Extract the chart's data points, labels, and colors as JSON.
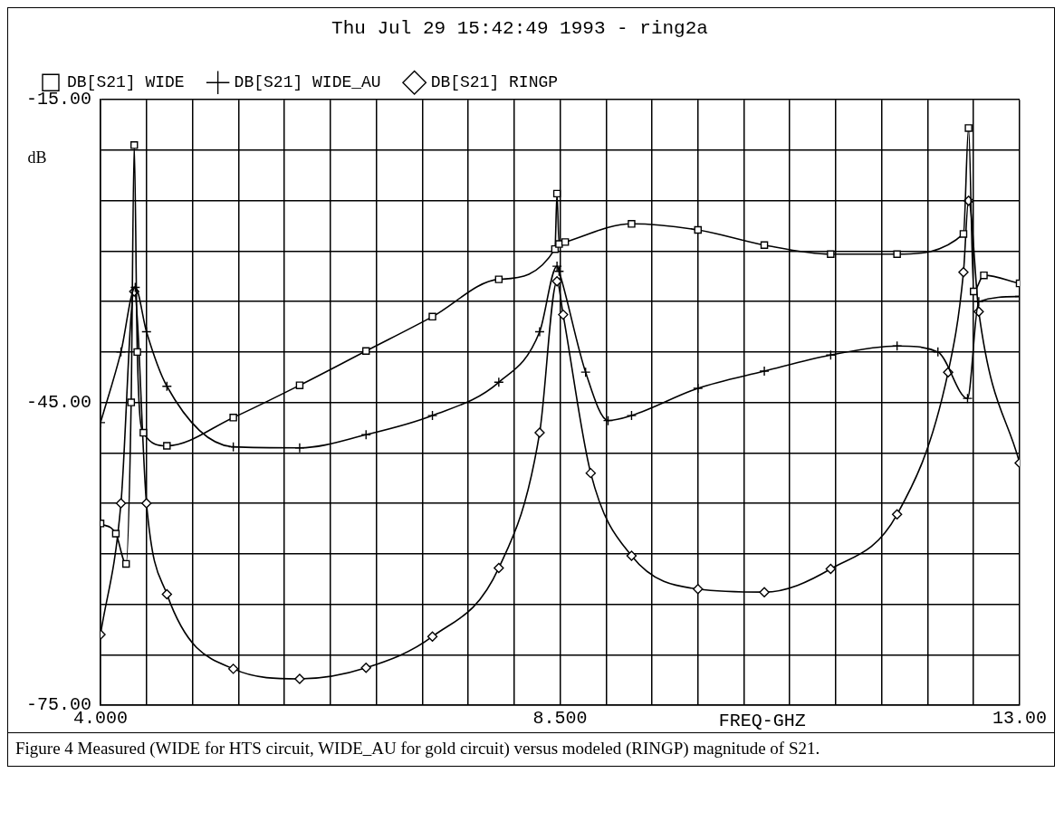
{
  "chart_data": {
    "type": "line",
    "title": "Thu Jul 29 15:42:49 1993 - ring2a",
    "xlabel": "FREQ-GHZ",
    "ylabel": "dB",
    "xlim": [
      4,
      13
    ],
    "ylim": [
      -75,
      -15
    ],
    "xticks": [
      {
        "value": 4,
        "label": "4.000"
      },
      {
        "value": 4.45,
        "label": null
      },
      {
        "value": 4.9,
        "label": null
      },
      {
        "value": 5.35,
        "label": null
      },
      {
        "value": 5.8,
        "label": null
      },
      {
        "value": 6.25,
        "label": null
      },
      {
        "value": 6.7,
        "label": null
      },
      {
        "value": 7.15,
        "label": null
      },
      {
        "value": 7.6,
        "label": null
      },
      {
        "value": 8.05,
        "label": null
      },
      {
        "value": 8.5,
        "label": "8.500"
      },
      {
        "value": 8.95,
        "label": null
      },
      {
        "value": 9.4,
        "label": null
      },
      {
        "value": 9.85,
        "label": null
      },
      {
        "value": 10.3,
        "label": null
      },
      {
        "value": 10.75,
        "label": null
      },
      {
        "value": 11.2,
        "label": null
      },
      {
        "value": 11.65,
        "label": null
      },
      {
        "value": 12.1,
        "label": null
      },
      {
        "value": 12.55,
        "label": null
      },
      {
        "value": 13,
        "label": "13.00"
      }
    ],
    "yticks": [
      {
        "value": -15,
        "label": "-15.00"
      },
      {
        "value": -20,
        "label": null
      },
      {
        "value": -25,
        "label": null
      },
      {
        "value": -30,
        "label": null
      },
      {
        "value": -35,
        "label": null
      },
      {
        "value": -40,
        "label": null
      },
      {
        "value": -45,
        "label": "-45.00"
      },
      {
        "value": -50,
        "label": null
      },
      {
        "value": -55,
        "label": null
      },
      {
        "value": -60,
        "label": null
      },
      {
        "value": -65,
        "label": null
      },
      {
        "value": -70,
        "label": null
      },
      {
        "value": -75,
        "label": "-75.00"
      }
    ],
    "grid": true,
    "legend": "top left",
    "series": [
      {
        "name": "DB[S21] WIDE",
        "color": "#000000",
        "marker": "square",
        "x": [
          4.0,
          4.15,
          4.25,
          4.3,
          4.33,
          4.36,
          4.42,
          4.65,
          5.3,
          5.95,
          6.6,
          7.25,
          7.9,
          8.45,
          8.47,
          8.49,
          8.55,
          9.2,
          9.85,
          10.5,
          11.15,
          11.8,
          12.45,
          12.5,
          12.55,
          12.65,
          13.0
        ],
        "values": [
          -57,
          -58,
          -61,
          -45,
          -19.5,
          -40,
          -48,
          -49.3,
          -46.5,
          -43.3,
          -39.9,
          -36.5,
          -32.8,
          -29.8,
          -24.3,
          -29.3,
          -29.1,
          -27.3,
          -27.9,
          -29.4,
          -30.3,
          -30.3,
          -28.3,
          -17.8,
          -34,
          -32.4,
          -33.2
        ]
      },
      {
        "name": "DB[S21] WIDE_AU",
        "color": "#000000",
        "marker": "cross",
        "x": [
          4.0,
          4.2,
          4.34,
          4.45,
          4.65,
          5.3,
          5.95,
          6.6,
          7.25,
          7.9,
          8.3,
          8.47,
          8.49,
          8.75,
          8.97,
          9.2,
          9.85,
          10.5,
          11.15,
          11.8,
          12.2,
          12.49,
          12.6,
          13.0
        ],
        "values": [
          -47,
          -40,
          -33.6,
          -38,
          -43.4,
          -49.4,
          -49.5,
          -48.2,
          -46.3,
          -43,
          -38,
          -31.5,
          -32,
          -42,
          -46.8,
          -46.3,
          -43.6,
          -41.9,
          -40.3,
          -39.4,
          -40,
          -44.6,
          -35,
          -34.5
        ]
      },
      {
        "name": "DB[S21] RINGP",
        "color": "#000000",
        "marker": "diamond",
        "x": [
          4.0,
          4.2,
          4.33,
          4.45,
          4.65,
          5.3,
          5.95,
          6.6,
          7.25,
          7.9,
          8.3,
          8.47,
          8.53,
          8.8,
          9.2,
          9.85,
          10.5,
          11.15,
          11.8,
          12.3,
          12.45,
          12.5,
          12.6,
          13.0
        ],
        "values": [
          -68,
          -55,
          -34,
          -55,
          -64,
          -71.4,
          -72.4,
          -71.3,
          -68.2,
          -61.4,
          -48,
          -33,
          -36.3,
          -52,
          -60.2,
          -63.5,
          -63.8,
          -61.5,
          -56.1,
          -42,
          -32.1,
          -25,
          -36,
          -51
        ]
      }
    ],
    "annotations": [
      "Figure 4  Measured (WIDE for HTS circuit, WIDE_AU for gold circuit) versus modeled (RINGP) magnitude of S21."
    ]
  }
}
